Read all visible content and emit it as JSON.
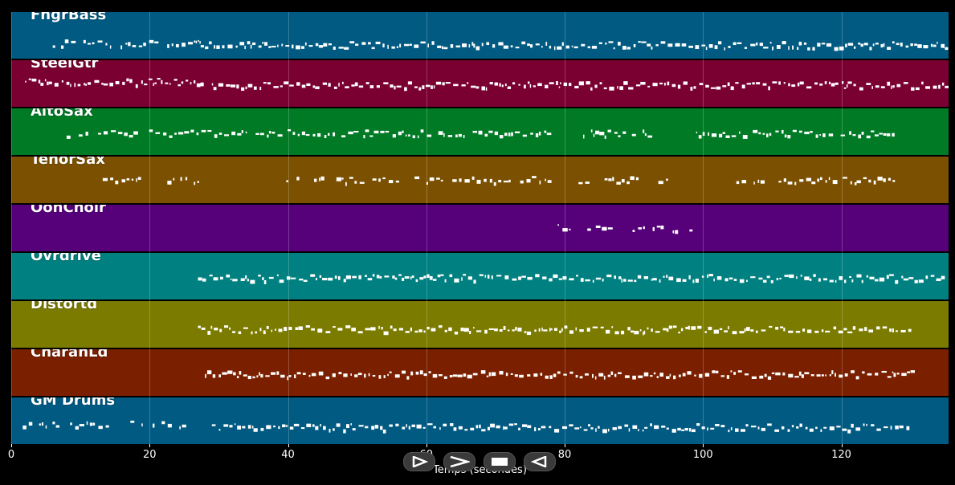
{
  "tracks": [
    {
      "name": "FngrBass",
      "color": "#005a82"
    },
    {
      "name": "SteelGtr",
      "color": "#7b0032"
    },
    {
      "name": "AltoSax",
      "color": "#007a25"
    },
    {
      "name": "TenorSax",
      "color": "#7b5000"
    },
    {
      "name": "OohChoir",
      "color": "#56007a"
    },
    {
      "name": "Ovrdrive",
      "color": "#008080"
    },
    {
      "name": "Distortd",
      "color": "#7b7b00"
    },
    {
      "name": "CharanLd",
      "color": "#7a2000"
    },
    {
      "name": "GM Drums",
      "color": "#005a82"
    }
  ],
  "axis": {
    "ticks": [
      0,
      20,
      40,
      60,
      80,
      100,
      120
    ],
    "range": [
      0,
      135.5
    ],
    "label": "Temps (secondes)",
    "grid": true
  },
  "transport": [
    {
      "action": "play",
      "icon": "play-icon"
    },
    {
      "action": "forward",
      "icon": "forward-icon"
    },
    {
      "action": "stop",
      "icon": "stop-icon"
    },
    {
      "action": "back",
      "icon": "back-icon"
    }
  ]
}
